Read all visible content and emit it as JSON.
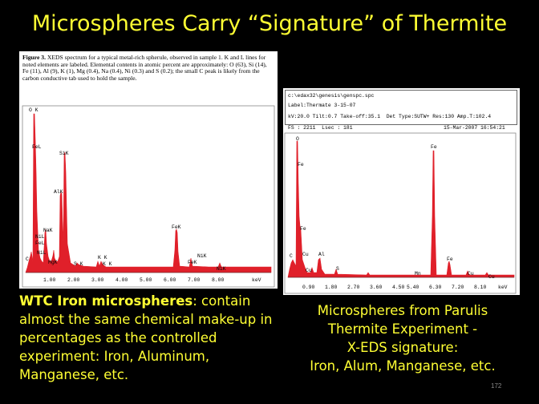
{
  "title": "Microspheres Carry “Signature” of Thermite",
  "left_figure": {
    "caption_head": "Figure 3.",
    "caption_body": " XEDS spectrum for a typical metal-rich spherule, observed in sample 1. K and L lines for noted elements are labeled.  Elemental contents in atomic percent are approximately:  O (63), Si (14), Fe (11), Al (9), K (1), Mg (0.4), Na (0.4), Ni (0.3) and S (0.2); the small C peak is likely from the carbon conductive tab used to hold the sample.",
    "x_ticks": [
      "1.00",
      "2.00",
      "3.00",
      "4.00",
      "5.00",
      "6.00",
      "7.00",
      "8.00"
    ],
    "x_unit": "keV",
    "peak_labels": [
      "O K",
      "FeL",
      "SiK",
      "AlK",
      "NaK",
      "NiL",
      "FeL",
      "NiL",
      "MgK",
      "C",
      "S K",
      "K K",
      "K K",
      "FeK",
      "FeK",
      "NiK",
      "NiK"
    ]
  },
  "right_figure": {
    "path": "c:\\edax32\\genesis\\genspc.spc",
    "label": "Label:Thermate 3-15-07",
    "params": "kV:20.0 Tilt:0.7 Take-off:35.1  Det Type:SUTW+ Res:130 Amp.T:102.4",
    "fs": "FS : 2211  Lsec : 181",
    "date": "15-Mar-2007 16:54:21",
    "x_ticks": [
      "0.90",
      "1.80",
      "2.70",
      "3.60",
      "4.50",
      "5.40",
      "6.30",
      "7.20",
      "8.10"
    ],
    "x_unit": "keV",
    "peak_labels": [
      "O",
      "Fe",
      "Fe",
      "C",
      "Cu",
      "Al",
      "Cu",
      "S",
      "Mn",
      "Fe",
      "Fe",
      "Cu",
      "Cu"
    ]
  },
  "left_text": {
    "bold": "WTC Iron microspheres",
    "rest": ": contain almost the same chemical make-up in percentages as the controlled experiment: Iron, Aluminum, Manganese, etc."
  },
  "right_text": {
    "lines": [
      "Microspheres from Parulis",
      "Thermite Experiment -",
      "X-EDS signature:",
      "Iron, Alum, Manganese, etc."
    ]
  },
  "slide_number": "172",
  "colors": {
    "title": "#ffff33",
    "spectrum": "#e0202a",
    "background": "#000000"
  }
}
